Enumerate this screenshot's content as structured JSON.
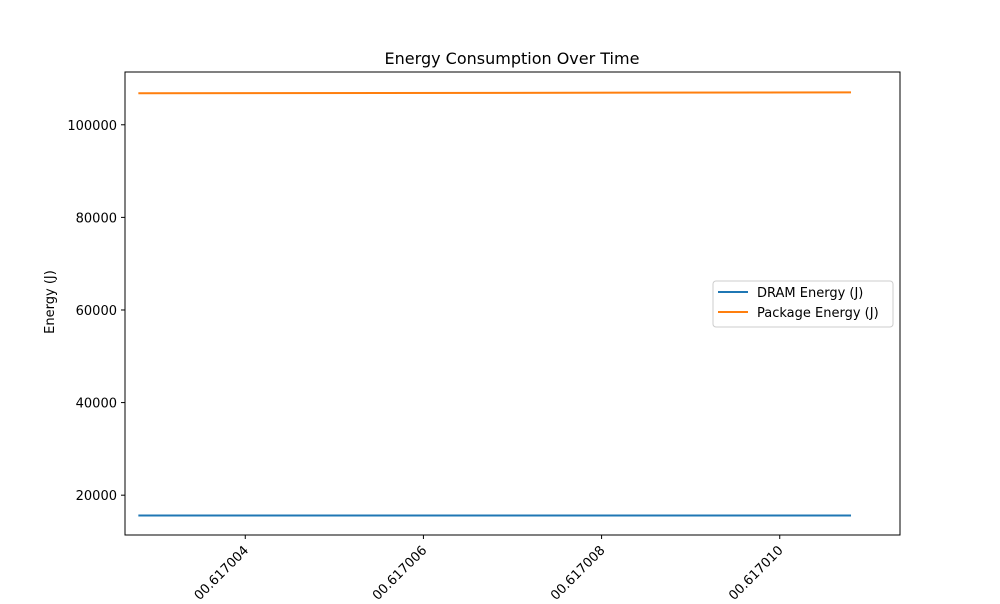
{
  "chart_data": {
    "type": "line",
    "title": "Energy Consumption Over Time",
    "xlabel": "",
    "ylabel": "Energy (J)",
    "x_ticks": [
      {
        "value": 0.617004,
        "label": "00.617004"
      },
      {
        "value": 0.617006,
        "label": "00.617006"
      },
      {
        "value": 0.617008,
        "label": "00.617008"
      },
      {
        "value": 0.61701,
        "label": "00.617010"
      }
    ],
    "y_ticks": [
      20000,
      40000,
      60000,
      80000,
      100000
    ],
    "xlim": [
      0.61700265,
      0.61701135
    ],
    "ylim": [
      11400,
      111400
    ],
    "x": [
      0.6170028,
      0.6170108
    ],
    "series": [
      {
        "name": "DRAM Energy (J)",
        "color": "#1f77b4",
        "values": [
          15600,
          15600
        ]
      },
      {
        "name": "Package Energy (J)",
        "color": "#ff7f0e",
        "values": [
          106800,
          107000
        ]
      }
    ],
    "grid": false,
    "legend_position": "center-right"
  }
}
